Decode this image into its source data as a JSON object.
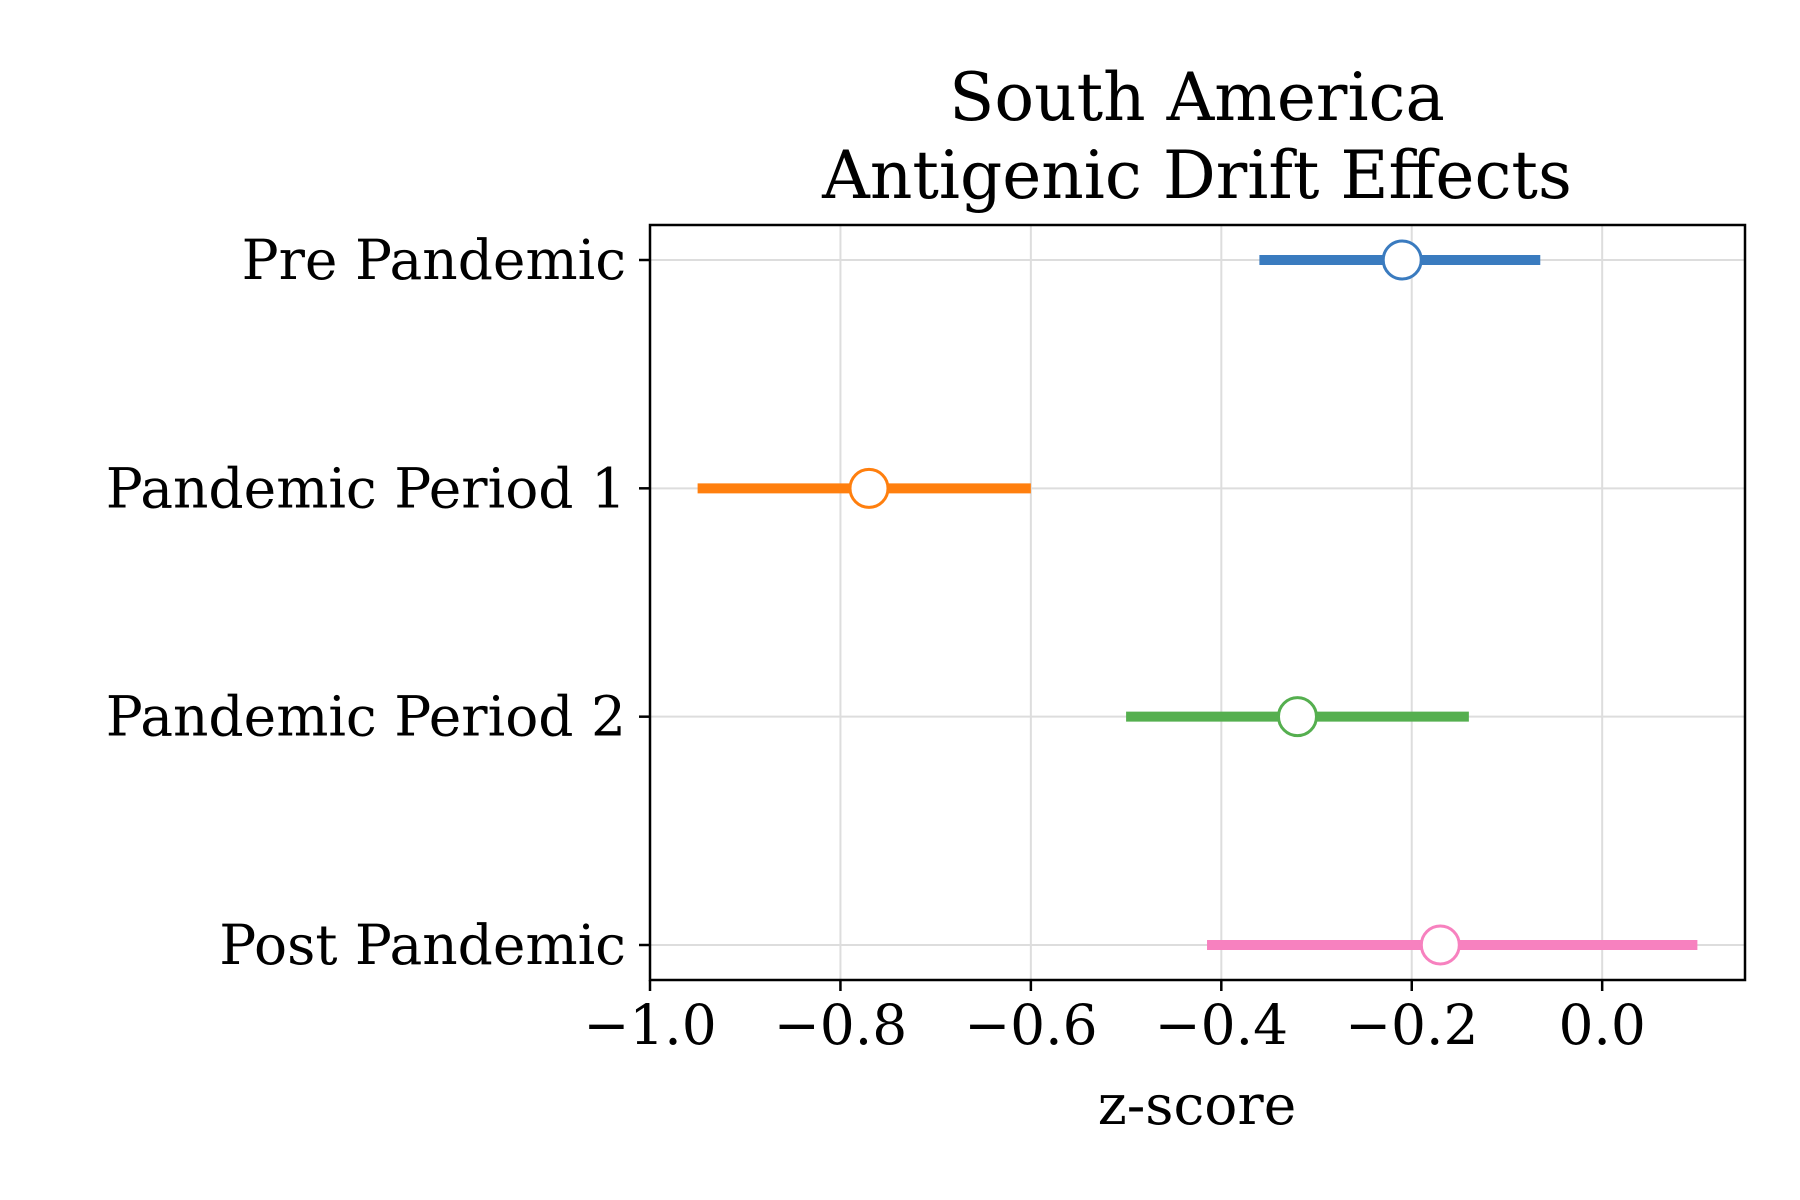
{
  "chart_data": {
    "type": "scatter",
    "title_lines": [
      "South America",
      "Antigenic Drift Effects"
    ],
    "xlabel": "z-score",
    "ylabel": "",
    "xlim": [
      -1.0,
      0.15
    ],
    "xticks": [
      -1.0,
      -0.8,
      -0.6,
      -0.4,
      -0.2,
      0.0
    ],
    "xtick_labels": [
      "−1.0",
      "−0.8",
      "−0.6",
      "−0.4",
      "−0.2",
      "0.0"
    ],
    "grid": true,
    "categories": [
      "Pre Pandemic",
      "Pandemic Period 1",
      "Pandemic Period 2",
      "Post Pandemic"
    ],
    "series": [
      {
        "category": "Pre Pandemic",
        "estimate": -0.21,
        "ci": [
          -0.36,
          -0.065
        ],
        "color": "#3a7bbf"
      },
      {
        "category": "Pandemic Period 1",
        "estimate": -0.77,
        "ci": [
          -0.95,
          -0.6
        ],
        "color": "#ff7f0e"
      },
      {
        "category": "Pandemic Period 2",
        "estimate": -0.32,
        "ci": [
          -0.5,
          -0.14
        ],
        "color": "#55af4f"
      },
      {
        "category": "Post Pandemic",
        "estimate": -0.17,
        "ci": [
          -0.415,
          0.1
        ],
        "color": "#f781bf"
      }
    ]
  }
}
